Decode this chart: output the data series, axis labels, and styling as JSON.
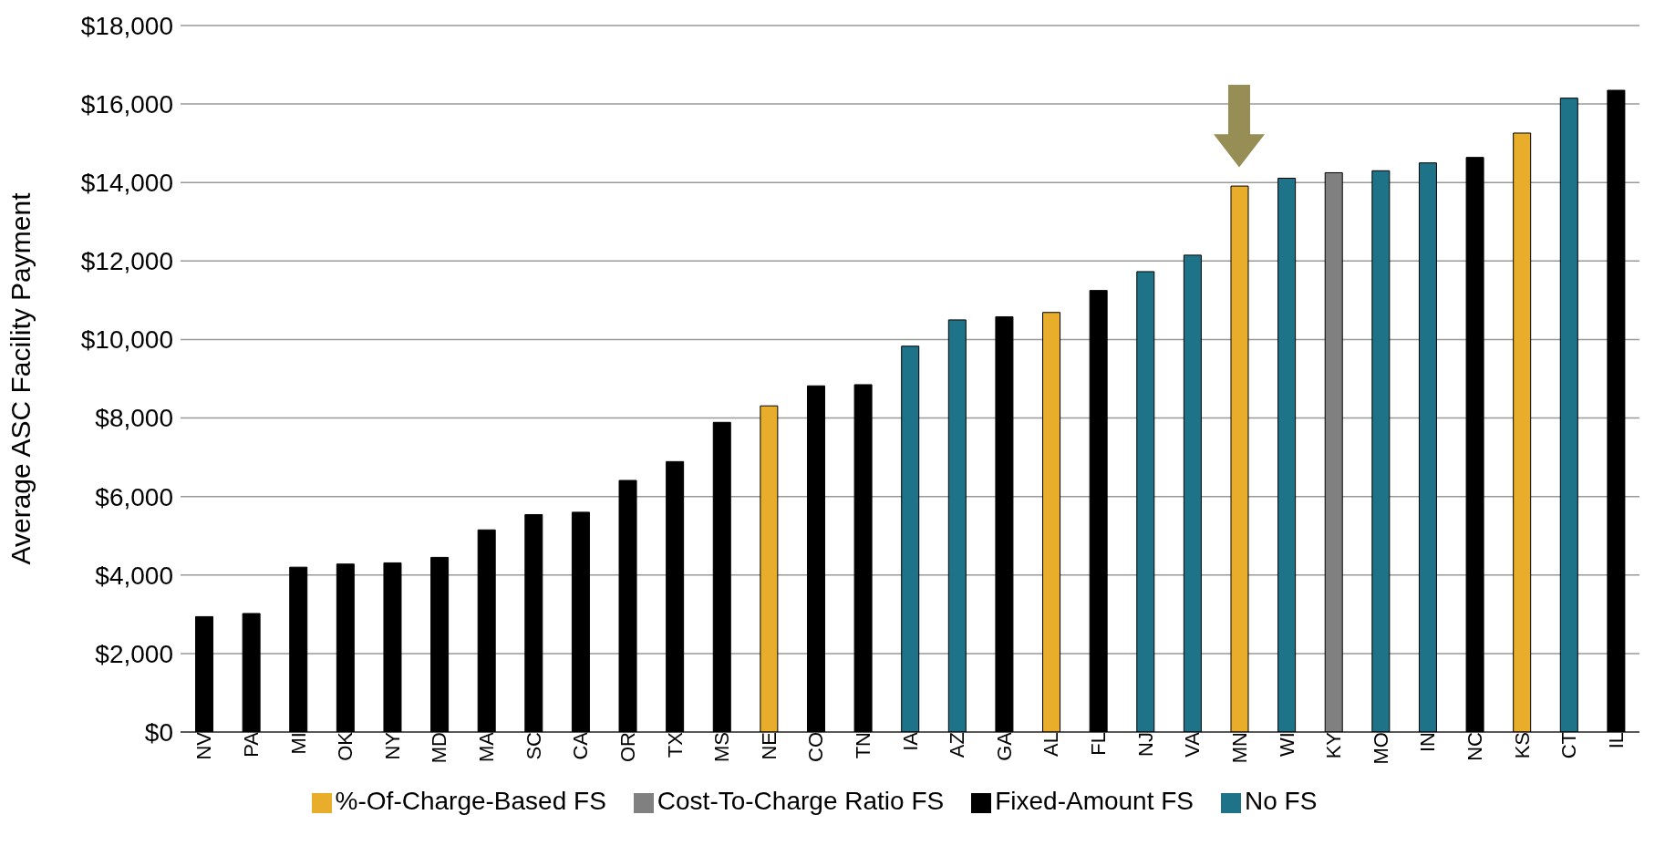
{
  "chart_data": {
    "type": "bar",
    "ylabel": "Average ASC Facility Payment",
    "categories": [
      "NV",
      "PA",
      "MI",
      "OK",
      "NY",
      "MD",
      "MA",
      "SC",
      "CA",
      "OR",
      "TX",
      "MS",
      "NE",
      "CO",
      "TN",
      "IA",
      "AZ",
      "GA",
      "AL",
      "FL",
      "NJ",
      "VA",
      "MN",
      "WI",
      "KY",
      "MO",
      "IN",
      "NC",
      "KS",
      "CT",
      "IL"
    ],
    "stacked": true,
    "series": [
      {
        "name": "Fixed-Amount FS",
        "color": "#000000",
        "values": [
          2940,
          3020,
          4200,
          4280,
          4310,
          4450,
          5150,
          5540,
          5600,
          6410,
          6890,
          7890,
          null,
          8820,
          8850,
          null,
          null,
          10580,
          null,
          11250,
          null,
          null,
          null,
          null,
          null,
          null,
          null,
          14640,
          null,
          null,
          16350
        ]
      },
      {
        "name": "%-Of-Charge-Based FS",
        "color": "#e8ad2a",
        "values": [
          null,
          null,
          null,
          null,
          null,
          null,
          null,
          null,
          null,
          null,
          null,
          null,
          8310,
          null,
          null,
          null,
          null,
          null,
          10690,
          null,
          null,
          null,
          13910,
          null,
          null,
          null,
          null,
          null,
          15260,
          null,
          null
        ]
      },
      {
        "name": "Cost-To-Charge Ratio FS",
        "color": "#808080",
        "values": [
          null,
          null,
          null,
          null,
          null,
          null,
          null,
          null,
          null,
          null,
          null,
          null,
          null,
          null,
          null,
          null,
          null,
          null,
          null,
          null,
          null,
          null,
          null,
          null,
          14250,
          null,
          null,
          null,
          null,
          null,
          null
        ]
      },
      {
        "name": "No FS",
        "color": "#1f7389",
        "values": [
          null,
          null,
          null,
          null,
          null,
          null,
          null,
          null,
          null,
          null,
          null,
          null,
          null,
          null,
          null,
          9830,
          10500,
          null,
          null,
          null,
          11730,
          12150,
          null,
          14110,
          null,
          14300,
          14500,
          null,
          null,
          16150,
          null
        ]
      }
    ],
    "ylim": [
      0,
      18000
    ],
    "yticks": [
      {
        "value": 0,
        "label": "$0"
      },
      {
        "value": 2000,
        "label": "$2,000"
      },
      {
        "value": 4000,
        "label": "$4,000"
      },
      {
        "value": 6000,
        "label": "$6,000"
      },
      {
        "value": 8000,
        "label": "$8,000"
      },
      {
        "value": 10000,
        "label": "$10,000"
      },
      {
        "value": 12000,
        "label": "$12,000"
      },
      {
        "value": 14000,
        "label": "$14,000"
      },
      {
        "value": 16000,
        "label": "$16,000"
      },
      {
        "value": 18000,
        "label": "$18,000"
      }
    ],
    "grid": "y",
    "legend": "bottom"
  }
}
